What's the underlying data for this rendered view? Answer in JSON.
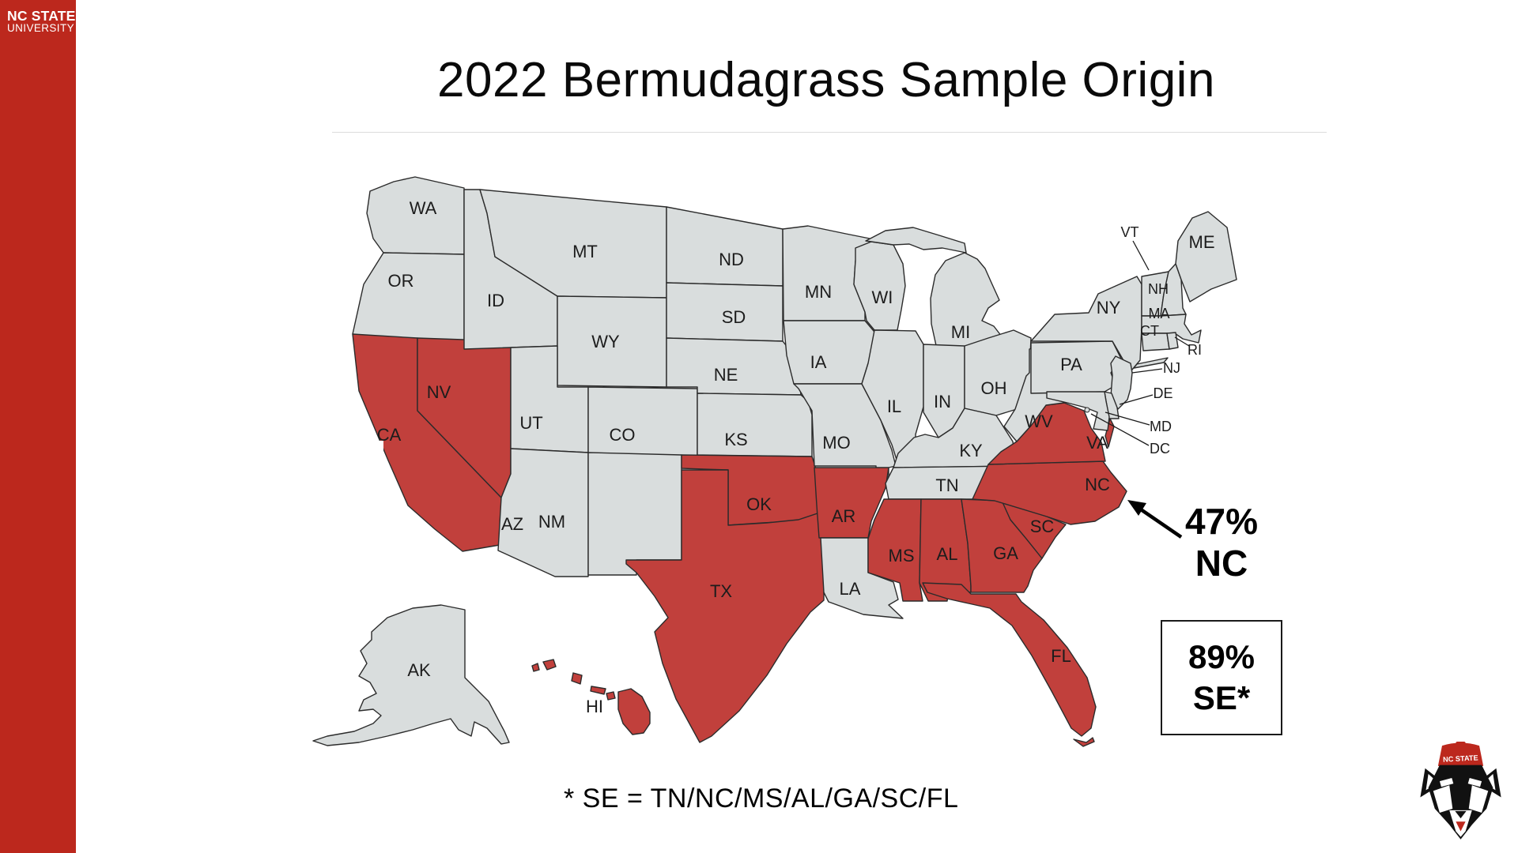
{
  "brand": {
    "line1": "NC STATE",
    "line2": "UNIVERSITY"
  },
  "title": "2022 Bermudagrass Sample Origin",
  "footnote": "* SE = TN/NC/MS/AL/GA/SC/FL",
  "annotations": {
    "nc_callout": {
      "line1": "47%",
      "line2": "NC"
    },
    "se_box": {
      "line1": "89%",
      "line2": "SE*"
    }
  },
  "logo": {
    "hat_text": "NC STATE"
  },
  "colors": {
    "highlight": "#C1403C",
    "state_fill": "#D9DDDD",
    "state_border": "#2B2B2B",
    "sidebar": "#BC281D"
  },
  "map": {
    "states": [
      {
        "id": "WA",
        "label": "WA",
        "highlighted": false
      },
      {
        "id": "OR",
        "label": "OR",
        "highlighted": false
      },
      {
        "id": "CA",
        "label": "CA",
        "highlighted": true
      },
      {
        "id": "NV",
        "label": "NV",
        "highlighted": true
      },
      {
        "id": "ID",
        "label": "ID",
        "highlighted": false
      },
      {
        "id": "MT",
        "label": "MT",
        "highlighted": false
      },
      {
        "id": "WY",
        "label": "WY",
        "highlighted": false
      },
      {
        "id": "UT",
        "label": "UT",
        "highlighted": false
      },
      {
        "id": "CO",
        "label": "CO",
        "highlighted": false
      },
      {
        "id": "AZ",
        "label": "AZ",
        "highlighted": false
      },
      {
        "id": "NM",
        "label": "NM",
        "highlighted": false
      },
      {
        "id": "ND",
        "label": "ND",
        "highlighted": false
      },
      {
        "id": "SD",
        "label": "SD",
        "highlighted": false
      },
      {
        "id": "NE",
        "label": "NE",
        "highlighted": false
      },
      {
        "id": "KS",
        "label": "KS",
        "highlighted": false
      },
      {
        "id": "OK",
        "label": "OK",
        "highlighted": true
      },
      {
        "id": "TX",
        "label": "TX",
        "highlighted": true
      },
      {
        "id": "MN",
        "label": "MN",
        "highlighted": false
      },
      {
        "id": "IA",
        "label": "IA",
        "highlighted": false
      },
      {
        "id": "MO",
        "label": "MO",
        "highlighted": false
      },
      {
        "id": "AR",
        "label": "AR",
        "highlighted": true
      },
      {
        "id": "LA",
        "label": "LA",
        "highlighted": false
      },
      {
        "id": "WI",
        "label": "WI",
        "highlighted": false
      },
      {
        "id": "IL",
        "label": "IL",
        "highlighted": false
      },
      {
        "id": "MI",
        "label": "MI",
        "highlighted": false
      },
      {
        "id": "IN",
        "label": "IN",
        "highlighted": false
      },
      {
        "id": "OH",
        "label": "OH",
        "highlighted": false
      },
      {
        "id": "KY",
        "label": "KY",
        "highlighted": false
      },
      {
        "id": "TN",
        "label": "TN",
        "highlighted": false
      },
      {
        "id": "MS",
        "label": "MS",
        "highlighted": true
      },
      {
        "id": "AL",
        "label": "AL",
        "highlighted": true
      },
      {
        "id": "GA",
        "label": "GA",
        "highlighted": true
      },
      {
        "id": "FL",
        "label": "FL",
        "highlighted": true
      },
      {
        "id": "SC",
        "label": "SC",
        "highlighted": true
      },
      {
        "id": "NC",
        "label": "NC",
        "highlighted": true
      },
      {
        "id": "VA",
        "label": "VA",
        "highlighted": true
      },
      {
        "id": "WV",
        "label": "WV",
        "highlighted": false
      },
      {
        "id": "PA",
        "label": "PA",
        "highlighted": false
      },
      {
        "id": "NY",
        "label": "NY",
        "highlighted": false
      },
      {
        "id": "NJ",
        "label": "NJ",
        "highlighted": false
      },
      {
        "id": "DE",
        "label": "DE",
        "highlighted": false
      },
      {
        "id": "MD",
        "label": "MD",
        "highlighted": false
      },
      {
        "id": "DC",
        "label": "DC",
        "highlighted": false
      },
      {
        "id": "VT",
        "label": "VT",
        "highlighted": false
      },
      {
        "id": "NH",
        "label": "NH",
        "highlighted": false
      },
      {
        "id": "MA",
        "label": "MA",
        "highlighted": false
      },
      {
        "id": "CT",
        "label": "CT",
        "highlighted": false
      },
      {
        "id": "RI",
        "label": "RI",
        "highlighted": false
      },
      {
        "id": "ME",
        "label": "ME",
        "highlighted": false
      },
      {
        "id": "AK",
        "label": "AK",
        "highlighted": false
      },
      {
        "id": "HI",
        "label": "HI",
        "highlighted": true
      }
    ]
  }
}
